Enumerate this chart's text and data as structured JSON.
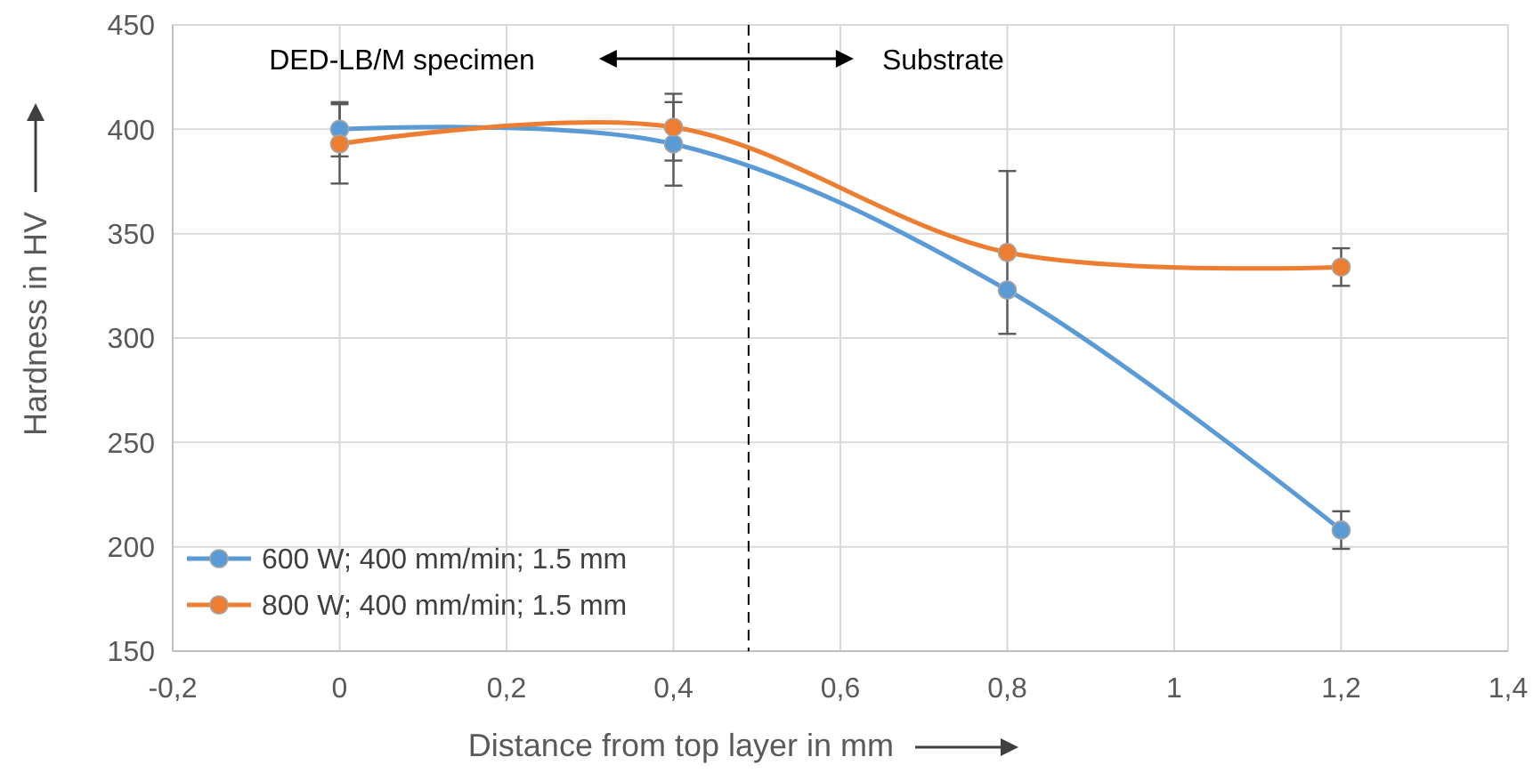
{
  "chart_data": {
    "type": "line",
    "xlabel": "Distance from top layer in mm",
    "ylabel": "Hardness in HV",
    "x": [
      0,
      0.4,
      0.8,
      1.2
    ],
    "series": [
      {
        "name": "600 W; 400 mm/min; 1.5 mm",
        "color": "#5b9bd5",
        "values": [
          400,
          393,
          323,
          208
        ],
        "errors": [
          13,
          20,
          null,
          9
        ]
      },
      {
        "name": "800 W; 400 mm/min; 1.5 mm",
        "color": "#ed7d31",
        "values": [
          393,
          401,
          341,
          334
        ],
        "errors": [
          19,
          16,
          39,
          9
        ]
      }
    ],
    "xlim": [
      -0.2,
      1.4
    ],
    "xticks": [
      {
        "value": -0.2,
        "label": "-0,2"
      },
      0,
      {
        "value": 0.2,
        "label": "0,2"
      },
      {
        "value": 0.4,
        "label": "0,4"
      },
      {
        "value": 0.6,
        "label": "0,6"
      },
      {
        "value": 0.8,
        "label": "0,8"
      },
      1,
      {
        "value": 1.2,
        "label": "1,2"
      },
      {
        "value": 1.4,
        "label": "1,4"
      }
    ],
    "ylim": [
      150,
      450
    ],
    "yticks": [
      150,
      200,
      250,
      300,
      350,
      400,
      450
    ],
    "ref_lines": [
      {
        "axis": "x",
        "value": 0.49,
        "color": "#000000",
        "line_style": "dashed"
      }
    ],
    "annotations": [
      "DED-LB/M specimen",
      "Substrate"
    ],
    "grid": true,
    "legend": "bottom left",
    "marker": "circle",
    "line_style": "solid"
  }
}
